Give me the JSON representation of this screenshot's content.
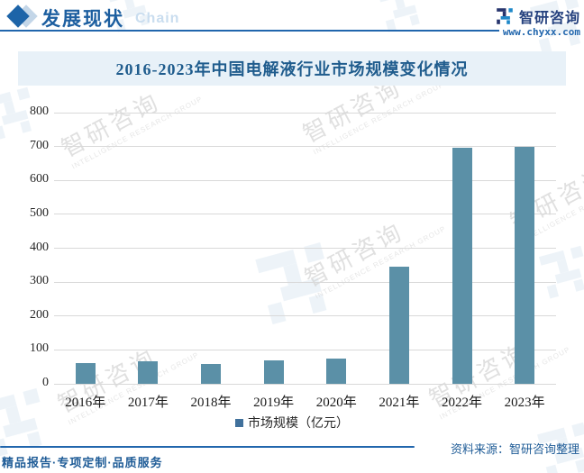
{
  "header": {
    "section_title": "发展现状",
    "section_subtitle": "Chain",
    "brand_name": "智研咨询",
    "brand_url": "www.chyxx.com"
  },
  "chart_data": {
    "type": "bar",
    "title": "2016-2023年中国电解液行业市场规模变化情况",
    "categories": [
      "2016年",
      "2017年",
      "2018年",
      "2019年",
      "2020年",
      "2021年",
      "2022年",
      "2023年"
    ],
    "series": [
      {
        "name": "市场规模（亿元）",
        "values": [
          62,
          67,
          59,
          69,
          75,
          345,
          697,
          700
        ]
      }
    ],
    "ylim": [
      0,
      800
    ],
    "yticks": [
      0,
      100,
      200,
      300,
      400,
      500,
      600,
      700,
      800
    ],
    "grid": "horizontal",
    "legend_position": "bottom",
    "xlabel": "",
    "ylabel": ""
  },
  "footer": {
    "source": "资料来源：智研咨询整理",
    "services": "精品报告·专项定制·品质服务"
  },
  "watermark": {
    "cn": "智研咨询",
    "en": "INTELLIGENCE RESEARCH GROUP"
  },
  "colors": {
    "bar": "#5b90a7",
    "legend_marker": "#41719c",
    "accent": "#2166ad",
    "title_band_bg": "#e8f1f8",
    "logo_navy": "#27356e",
    "logo_blue": "#1e88c9",
    "watermark_glyph": "#dce9f3"
  }
}
